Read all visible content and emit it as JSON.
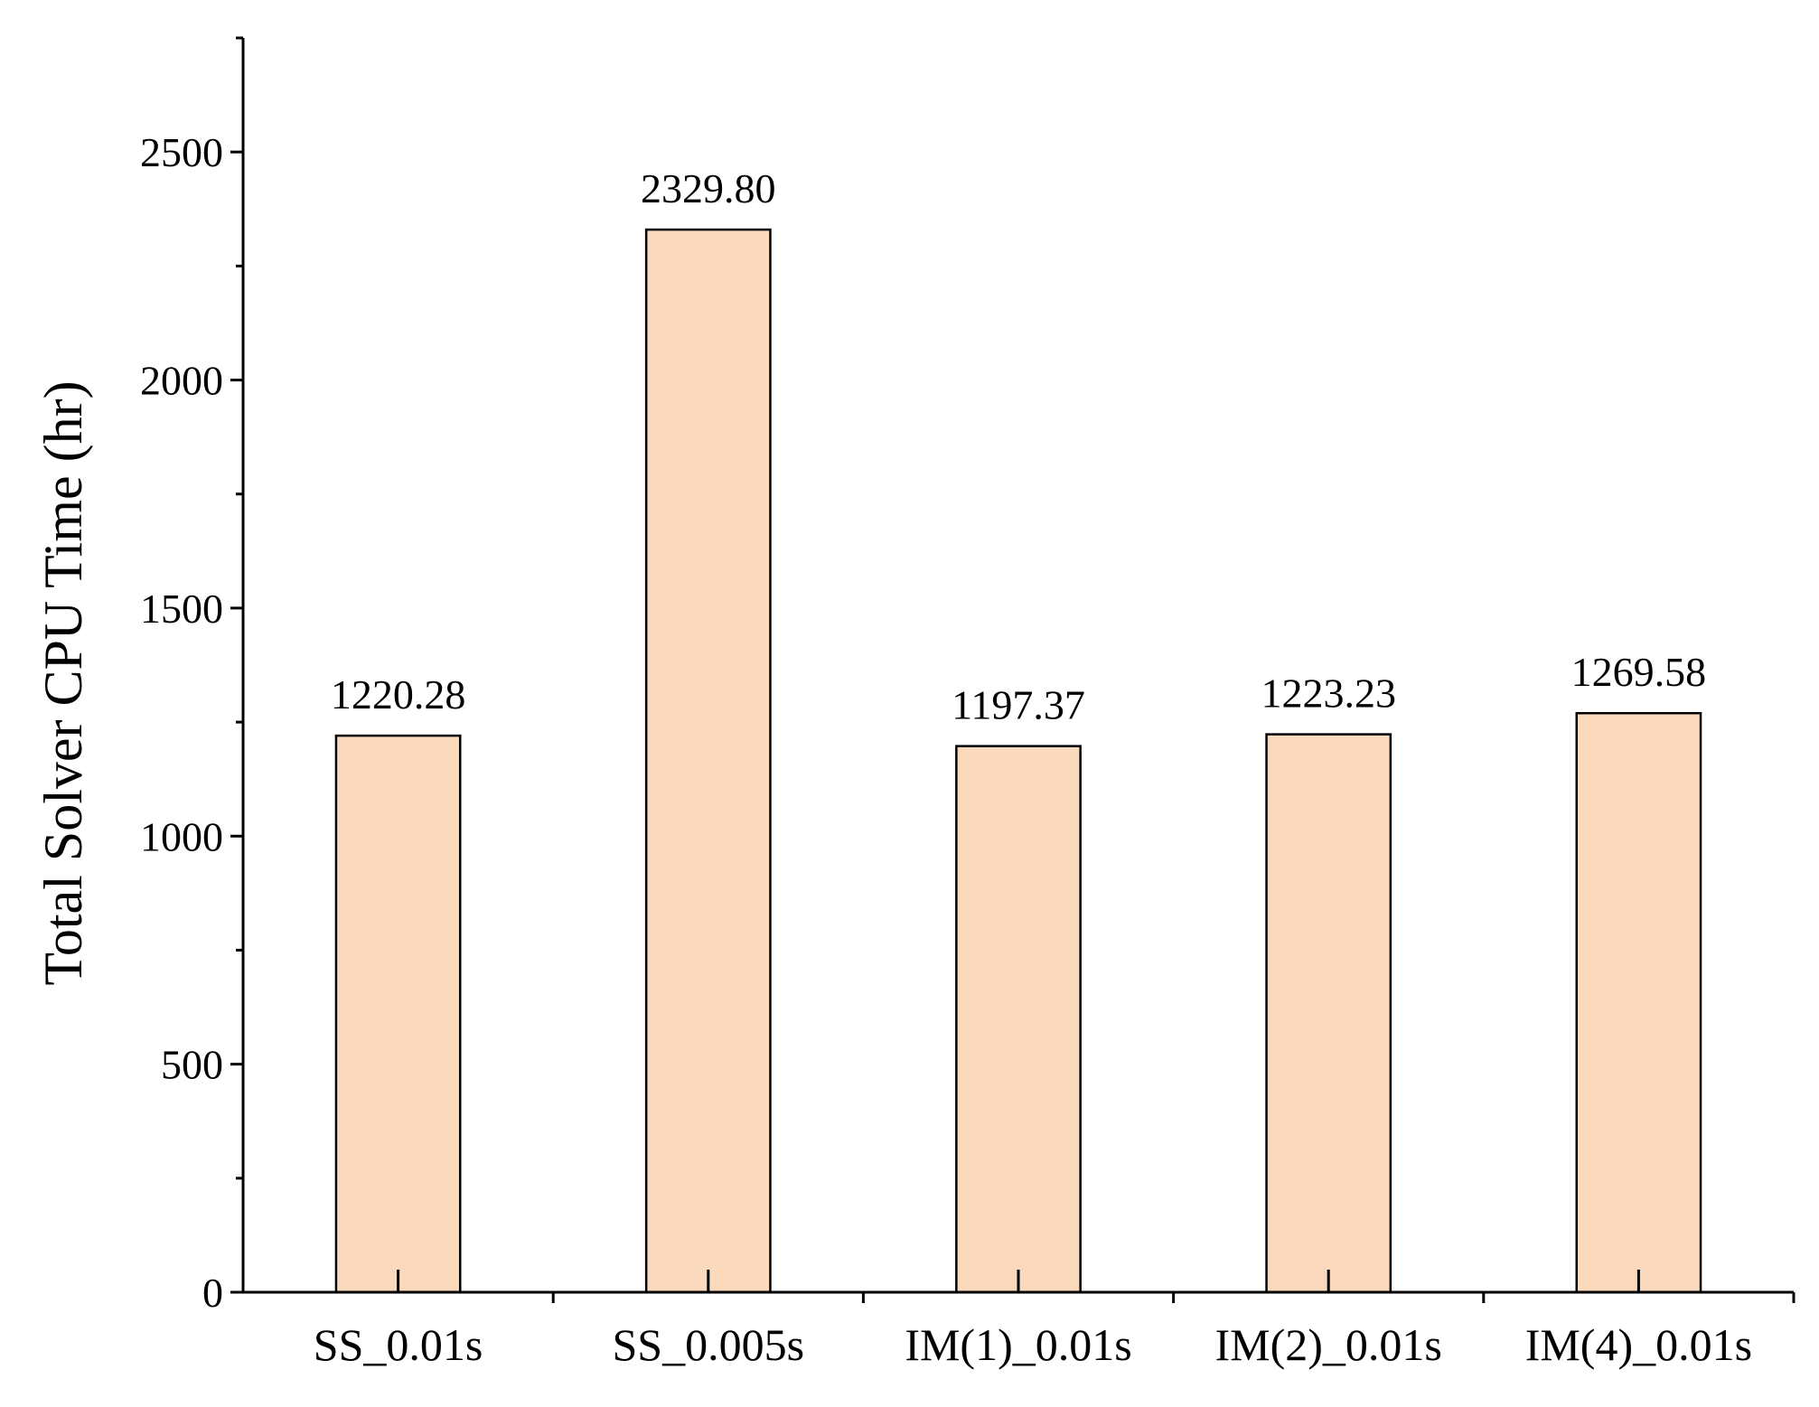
{
  "chart_data": {
    "type": "bar",
    "title": "",
    "xlabel": "",
    "ylabel": "Total Solver CPU Time (hr)",
    "ylim": [
      0,
      2750
    ],
    "yticks_major": [
      0,
      500,
      1000,
      1500,
      2000,
      2500
    ],
    "yticks_minor_step": 250,
    "grid": false,
    "legend": "none",
    "bar_color": "#FAD9BC",
    "bar_edge_color": "#000000",
    "categories": [
      "SS_0.01s",
      "SS_0.005s",
      "IM(1)_0.01s",
      "IM(2)_0.01s",
      "IM(4)_0.01s"
    ],
    "values": [
      1220.28,
      2329.8,
      1197.37,
      1223.23,
      1269.58
    ],
    "value_labels": [
      "1220.28",
      "2329.80",
      "1197.37",
      "1223.23",
      "1269.58"
    ]
  }
}
